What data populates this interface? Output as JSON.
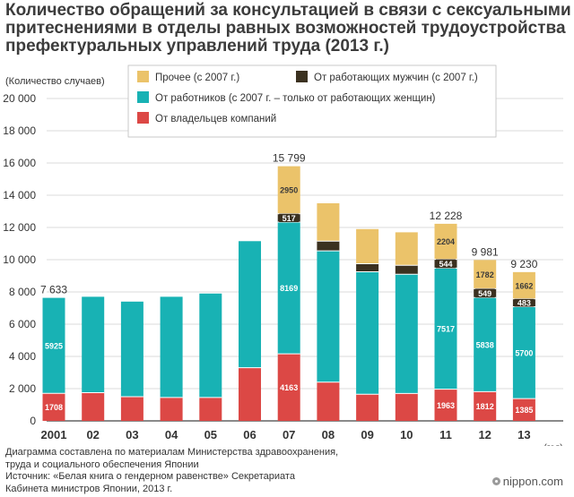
{
  "title": {
    "line1": "Количество обращений за консультацией в связи с сексуальными",
    "line2": "притеснениями в отделы равных возможностей трудоустройства",
    "line3": "префектуральных управлений труда (2013 г.)"
  },
  "source": {
    "line1": "Диаграмма составлена по материалам Министерства здравоохранения,",
    "line2": "труда и социального обеспечения Японии",
    "line3": "Источник: «Белая книга о гендерном равенстве» Секретариата",
    "line4": "Кабинета министров Японии, 2013 г."
  },
  "brand": {
    "text": "nippon.com"
  },
  "chart_data": {
    "type": "bar",
    "stacked": true,
    "categories": [
      "2001",
      "02",
      "03",
      "04",
      "05",
      "06",
      "07",
      "08",
      "09",
      "10",
      "11",
      "12",
      "13"
    ],
    "x_unit_label": "(год)",
    "ylabel": "(Количество случаев)",
    "ylim": [
      0,
      20000
    ],
    "yticks": [
      0,
      2000,
      4000,
      6000,
      8000,
      10000,
      12000,
      14000,
      16000,
      18000,
      20000
    ],
    "ytick_labels": [
      "0",
      "2 000",
      "4 000",
      "6 000",
      "8 000",
      "10 000",
      "12 000",
      "14 000",
      "16 000",
      "18 000",
      "20 000"
    ],
    "grid": true,
    "legend_position": "top",
    "series": [
      {
        "name": "От владельцев компаний",
        "color": "#dc4845",
        "values": [
          1708,
          1750,
          1500,
          1450,
          1450,
          3300,
          4163,
          2400,
          1650,
          1700,
          1963,
          1812,
          1385
        ],
        "labels": [
          "1708",
          "",
          "",
          "",
          "",
          "",
          "4163",
          "",
          "",
          "",
          "1963",
          "1812",
          "1385"
        ]
      },
      {
        "name": "От работников (с 2007 г. – только от работающих женщин)",
        "color": "#18b2b4",
        "values": [
          5925,
          5950,
          5900,
          6250,
          6450,
          7850,
          8169,
          8150,
          7600,
          7400,
          7517,
          5838,
          5700
        ],
        "labels": [
          "5925",
          "",
          "",
          "",
          "",
          "",
          "8169",
          "",
          "",
          "",
          "7517",
          "5838",
          "5700"
        ]
      },
      {
        "name": "От работающих мужчин (с 2007 г.)",
        "color": "#3b3120",
        "values": [
          0,
          0,
          0,
          0,
          0,
          0,
          517,
          600,
          500,
          550,
          544,
          549,
          483
        ],
        "labels": [
          "",
          "",
          "",
          "",
          "",
          "",
          "517",
          "",
          "",
          "",
          "544",
          "549",
          "483"
        ]
      },
      {
        "name": "Прочее (с 2007 г.)",
        "color": "#ebc36a",
        "values": [
          0,
          0,
          0,
          0,
          0,
          0,
          2950,
          2350,
          2150,
          2050,
          2204,
          1782,
          1662
        ],
        "labels": [
          "",
          "",
          "",
          "",
          "",
          "",
          "2950",
          "",
          "",
          "",
          "2204",
          "1782",
          "1662"
        ]
      }
    ],
    "totals": [
      7633,
      7700,
      7400,
      7700,
      7900,
      11150,
      15799,
      13500,
      11900,
      11700,
      12228,
      9981,
      9230
    ],
    "total_labels": [
      "7 633",
      "",
      "",
      "",
      "",
      "",
      "15 799",
      "",
      "",
      "",
      "12 228",
      "9 981",
      "9 230"
    ],
    "legend_entries": [
      "Прочее (с 2007 г.)",
      "От работающих мужчин (с 2007 г.)",
      "От работников (с 2007 г. – только от работающих женщин)",
      "От владельцев компаний"
    ]
  }
}
